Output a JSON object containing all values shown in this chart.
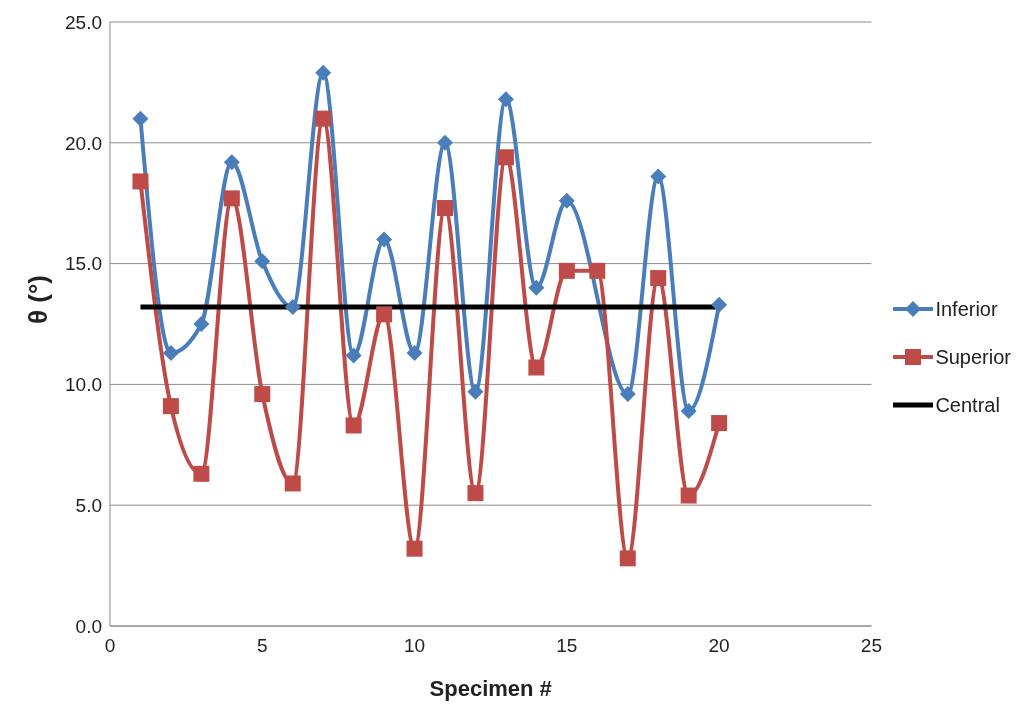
{
  "chart_data": {
    "type": "line",
    "xlabel": "Specimen #",
    "ylabel": "θ (°)",
    "x": [
      1,
      2,
      3,
      4,
      5,
      6,
      7,
      8,
      9,
      10,
      11,
      12,
      13,
      14,
      15,
      16,
      17,
      18,
      19,
      20
    ],
    "series": [
      {
        "name": "Inferior",
        "color": "#4a7ebb",
        "marker": "diamond",
        "values": [
          21.0,
          11.3,
          12.5,
          19.2,
          15.1,
          13.2,
          22.9,
          11.2,
          16.0,
          11.3,
          20.0,
          9.7,
          21.8,
          14.0,
          17.6,
          null,
          9.6,
          18.6,
          8.9,
          13.3
        ]
      },
      {
        "name": "Superior",
        "color": "#be4b48",
        "marker": "square",
        "values": [
          18.4,
          9.1,
          6.3,
          17.7,
          9.6,
          5.9,
          21.0,
          8.3,
          12.9,
          3.2,
          17.3,
          5.5,
          19.4,
          10.7,
          14.7,
          14.7,
          2.8,
          14.4,
          5.4,
          8.4
        ]
      },
      {
        "name": "Central",
        "color": "#000000",
        "marker": "none",
        "values": [
          13.2,
          13.2,
          13.2,
          13.2,
          13.2,
          13.2,
          13.2,
          13.2,
          13.2,
          13.2,
          13.2,
          13.2,
          13.2,
          13.2,
          13.2,
          13.2,
          13.2,
          13.2,
          13.2,
          13.2
        ]
      }
    ],
    "xlim": [
      0,
      25
    ],
    "xticks": [
      0,
      5,
      10,
      15,
      20,
      25
    ],
    "ylim": [
      0,
      25
    ],
    "yticks": [
      {
        "value": 0,
        "label": "0.0"
      },
      {
        "value": 5,
        "label": "5.0"
      },
      {
        "value": 10,
        "label": "10.0"
      },
      {
        "value": 15,
        "label": "15.0"
      },
      {
        "value": 20,
        "label": "20.0"
      },
      {
        "value": 25,
        "label": "25.0"
      }
    ],
    "grid": "y",
    "legend": "right",
    "line_style": "solid"
  }
}
